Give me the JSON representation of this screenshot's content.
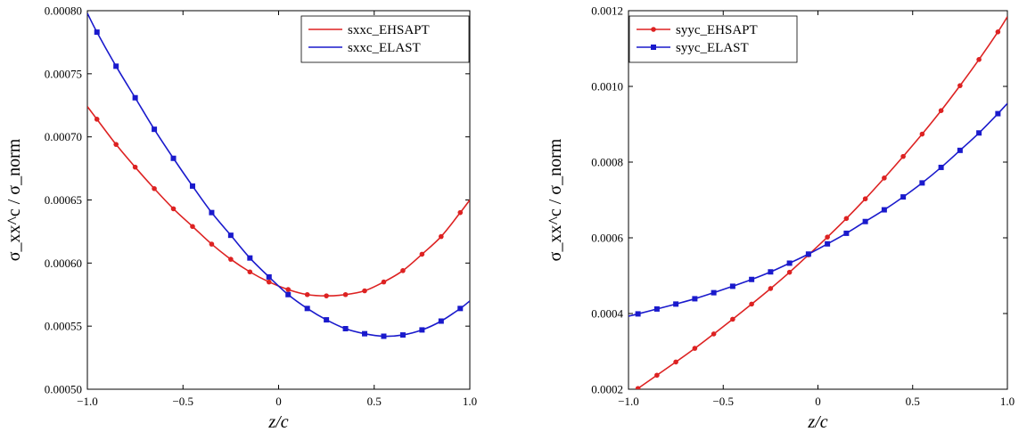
{
  "chart_data": [
    {
      "type": "line",
      "xlabel": "z/c",
      "ylabel": "σ_xx^c / σ_norm",
      "xlim": [
        -1.0,
        1.0
      ],
      "ylim": [
        0.0005,
        0.0008
      ],
      "x_ticks": [
        -1.0,
        -0.5,
        0,
        0.5,
        1.0
      ],
      "x_tick_labels": [
        "−1.0",
        "−0.5",
        "0",
        "0.5",
        "1.0"
      ],
      "y_ticks": [
        0.0005,
        0.00055,
        0.0006,
        0.00065,
        0.0007,
        0.00075,
        0.0008
      ],
      "y_tick_labels": [
        "0.00050",
        "0.00055",
        "0.00060",
        "0.00065",
        "0.00070",
        "0.00075",
        "0.00080"
      ],
      "grid": false,
      "legend_position": "top-right",
      "legend_markers": false,
      "series": [
        {
          "name": "sxxc_EHSAPT",
          "color": "#dd2222",
          "marker": "circle",
          "x": [
            -1.0,
            -0.95,
            -0.85,
            -0.75,
            -0.65,
            -0.55,
            -0.45,
            -0.35,
            -0.25,
            -0.15,
            -0.05,
            0.05,
            0.15,
            0.25,
            0.35,
            0.45,
            0.55,
            0.65,
            0.75,
            0.85,
            0.95,
            1.0
          ],
          "y": [
            0.000724,
            0.000714,
            0.000694,
            0.000676,
            0.000659,
            0.000643,
            0.000629,
            0.000615,
            0.000603,
            0.000593,
            0.000585,
            0.000579,
            0.000575,
            0.000574,
            0.000575,
            0.000578,
            0.000585,
            0.000594,
            0.000607,
            0.000621,
            0.00064,
            0.00065
          ]
        },
        {
          "name": "sxxc_ELAST",
          "color": "#1a1acc",
          "marker": "square",
          "x": [
            -1.0,
            -0.95,
            -0.85,
            -0.75,
            -0.65,
            -0.55,
            -0.45,
            -0.35,
            -0.25,
            -0.15,
            -0.05,
            0.05,
            0.15,
            0.25,
            0.35,
            0.45,
            0.55,
            0.65,
            0.75,
            0.85,
            0.95,
            1.0
          ],
          "y": [
            0.000798,
            0.000783,
            0.000756,
            0.000731,
            0.000706,
            0.000683,
            0.000661,
            0.00064,
            0.000622,
            0.000604,
            0.000589,
            0.000575,
            0.000564,
            0.000555,
            0.000548,
            0.000544,
            0.000542,
            0.000543,
            0.000547,
            0.000554,
            0.000564,
            0.00057
          ]
        }
      ]
    },
    {
      "type": "line",
      "xlabel": "z/c",
      "ylabel": "σ_xx^c / σ_norm",
      "xlim": [
        -1.0,
        1.0
      ],
      "ylim": [
        0.0002,
        0.0012
      ],
      "x_ticks": [
        -1.0,
        -0.5,
        0,
        0.5,
        1.0
      ],
      "x_tick_labels": [
        "−1.0",
        "−0.5",
        "0",
        "0.5",
        "1.0"
      ],
      "y_ticks": [
        0.0002,
        0.0004,
        0.0006,
        0.0008,
        0.001,
        0.0012
      ],
      "y_tick_labels": [
        "0.0002",
        "0.0004",
        "0.0006",
        "0.0008",
        "0.0010",
        "0.0012"
      ],
      "grid": false,
      "legend_position": "top-left",
      "legend_markers": true,
      "series": [
        {
          "name": "syyc_EHSAPT",
          "color": "#dd2222",
          "marker": "circle",
          "x": [
            -1.0,
            -0.95,
            -0.85,
            -0.75,
            -0.65,
            -0.55,
            -0.45,
            -0.35,
            -0.25,
            -0.15,
            -0.05,
            0.05,
            0.15,
            0.25,
            0.35,
            0.45,
            0.55,
            0.65,
            0.75,
            0.85,
            0.95,
            1.0
          ],
          "y": [
            0.000185,
            0.000202,
            0.000237,
            0.000272,
            0.000308,
            0.000346,
            0.000385,
            0.000425,
            0.000466,
            0.000509,
            0.000555,
            0.000602,
            0.000651,
            0.000703,
            0.000758,
            0.000815,
            0.000874,
            0.000936,
            0.001002,
            0.001071,
            0.001144,
            0.001184
          ]
        },
        {
          "name": "syyc_ELAST",
          "color": "#1a1acc",
          "marker": "square",
          "x": [
            -1.0,
            -0.95,
            -0.85,
            -0.75,
            -0.65,
            -0.55,
            -0.45,
            -0.35,
            -0.25,
            -0.15,
            -0.05,
            0.05,
            0.15,
            0.25,
            0.35,
            0.45,
            0.55,
            0.65,
            0.75,
            0.85,
            0.95,
            1.0
          ],
          "y": [
            0.000393,
            0.000399,
            0.000412,
            0.000425,
            0.000439,
            0.000455,
            0.000472,
            0.00049,
            0.00051,
            0.000533,
            0.000557,
            0.000584,
            0.000612,
            0.000643,
            0.000674,
            0.000708,
            0.000745,
            0.000786,
            0.000831,
            0.000877,
            0.000928,
            0.000955
          ]
        }
      ]
    }
  ]
}
